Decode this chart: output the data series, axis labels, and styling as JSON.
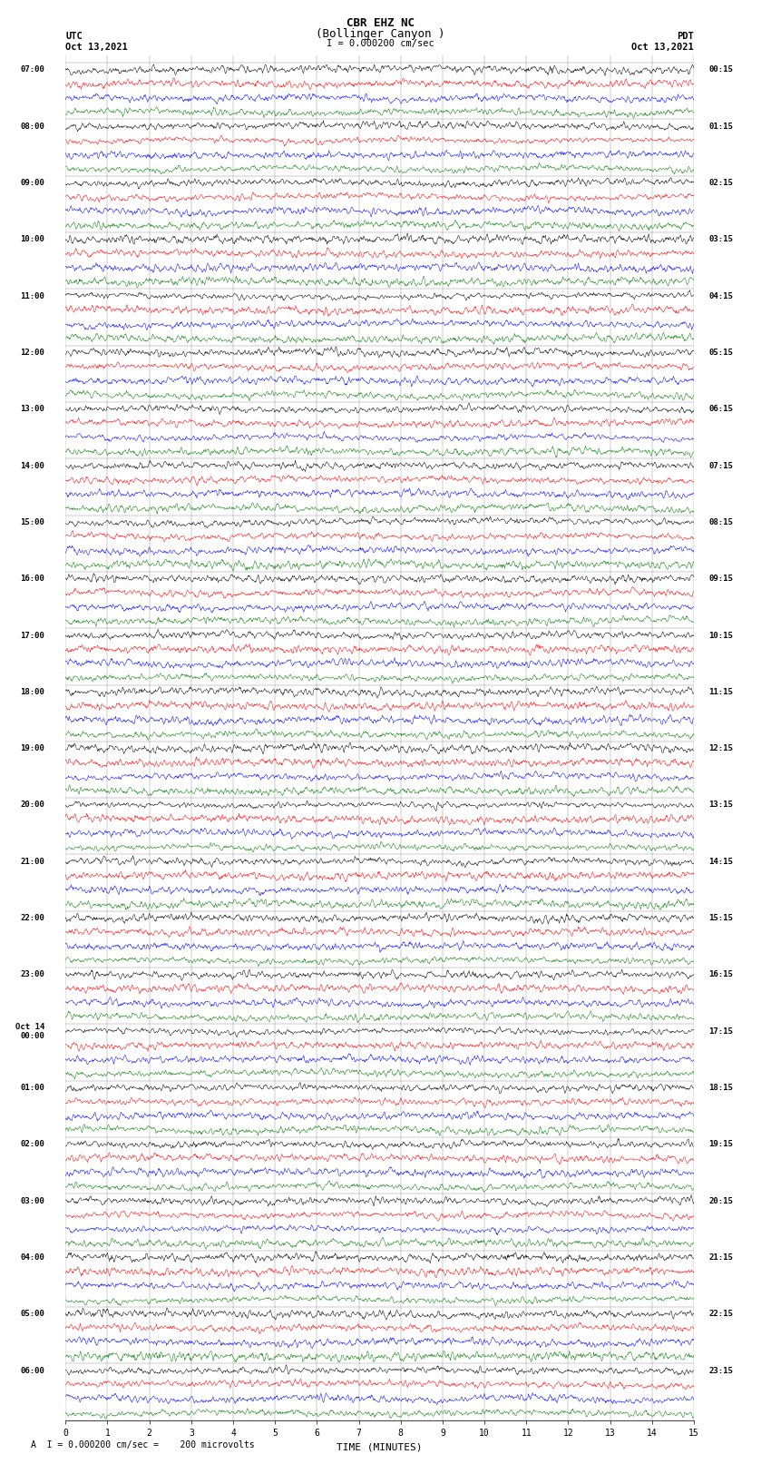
{
  "title_line1": "CBR EHZ NC",
  "title_line2": "(Bollinger Canyon )",
  "scale_text": "I = 0.000200 cm/sec",
  "footer_text": "A  I = 0.000200 cm/sec =    200 microvolts",
  "utc_label": "UTC",
  "utc_date": "Oct 13,2021",
  "pdt_label": "PDT",
  "pdt_date": "Oct 13,2021",
  "xlabel": "TIME (MINUTES)",
  "background_color": "#ffffff",
  "trace_colors": [
    "black",
    "red",
    "blue",
    "green"
  ],
  "xlim": [
    0,
    15
  ],
  "xticks": [
    0,
    1,
    2,
    3,
    4,
    5,
    6,
    7,
    8,
    9,
    10,
    11,
    12,
    13,
    14,
    15
  ],
  "utc_starts": [
    "07:00",
    "08:00",
    "09:00",
    "10:00",
    "11:00",
    "12:00",
    "13:00",
    "14:00",
    "15:00",
    "16:00",
    "17:00",
    "18:00",
    "19:00",
    "20:00",
    "21:00",
    "22:00",
    "23:00",
    "Oct 14\n00:00",
    "01:00",
    "02:00",
    "03:00",
    "04:00",
    "05:00",
    "06:00"
  ],
  "pdt_starts": [
    "00:15",
    "01:15",
    "02:15",
    "03:15",
    "04:15",
    "05:15",
    "06:15",
    "07:15",
    "08:15",
    "09:15",
    "10:15",
    "11:15",
    "12:15",
    "13:15",
    "14:15",
    "15:15",
    "16:15",
    "17:15",
    "18:15",
    "19:15",
    "20:15",
    "21:15",
    "22:15",
    "23:15"
  ],
  "seed": 42,
  "n_hours": 24,
  "traces_per_hour": 4,
  "n_points": 1500,
  "noise_scale": 0.25,
  "active_hours": [
    3,
    4,
    7,
    8,
    14,
    15,
    16,
    21,
    22
  ],
  "active_scale": 0.7
}
